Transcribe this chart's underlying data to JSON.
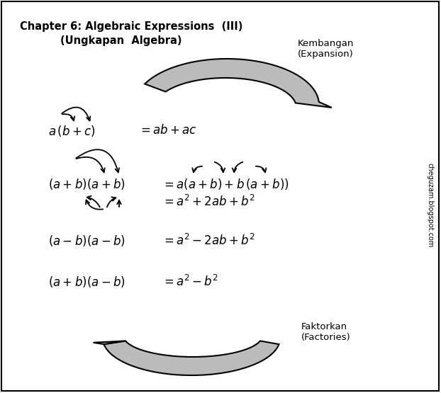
{
  "title_line1": "Chapter 6: Algebraic Expressions  (III)",
  "title_line2": "(Ungkapan  Algebra)",
  "kembangan_label": "Kembangan\n(Expansion)",
  "faktorkan_label": "Faktorkan\n(Factories)",
  "eq1_lhs": "$a\\,(b+c)$",
  "eq1_rhs": "$= ab + ac$",
  "eq2_lhs": "$(a+b)(a+b)$",
  "eq2_rhs1": "$= a(a+b)+b\\,(a+b))$",
  "eq2_rhs2": "$= a^2 + 2ab + b^2$",
  "eq3_lhs": "$(a-b)(a-b)$",
  "eq3_rhs": "$= a^2 - 2ab + b^2$",
  "eq4_lhs": "$(a+b)(a-b)$",
  "eq4_rhs": "$= a^2 - b^2$",
  "watermark": "cheguzam.blogspot.com",
  "bg_color": "#FFFFFF",
  "text_color": "#000000",
  "gray_fill": "#BBBBBB"
}
